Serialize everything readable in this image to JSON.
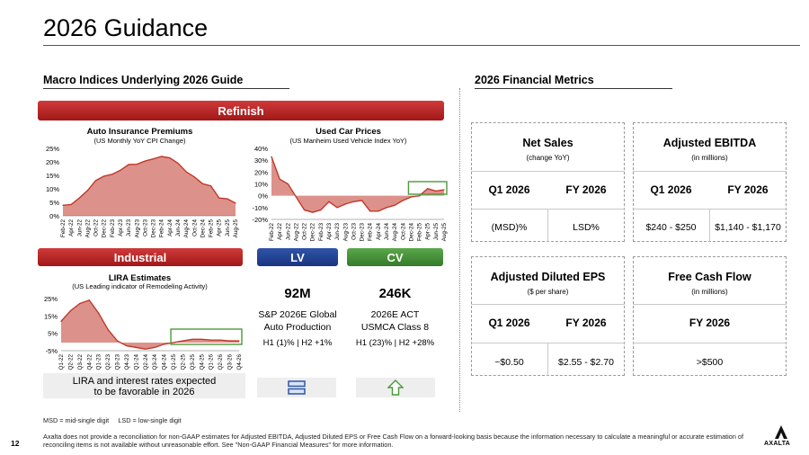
{
  "page": {
    "title": "2026 Guidance",
    "page_number": "12",
    "logo": "AXALTA"
  },
  "left": {
    "heading": "Macro Indices Underlying 2026 Guide",
    "refinish_banner": "Refinish",
    "industrial_banner": "Industrial",
    "lv_banner": "LV",
    "cv_banner": "CV",
    "lv": {
      "value": "92M",
      "line1": "S&P 2026E Global",
      "line2": "Auto Production",
      "line3": "H1 (1)% | H2 +1%"
    },
    "cv": {
      "value": "246K",
      "line1": "2026E ACT",
      "line2": "USMCA Class 8",
      "line3": "H1 (23)% | H2 +28%"
    },
    "lira_note_line1": "LIRA and interest rates expected",
    "lira_note_line2": "to be favorable in 2026",
    "lv_icon": "equal-bars-icon",
    "cv_icon": "up-arrow-icon"
  },
  "chart_data": [
    {
      "type": "area",
      "title": "Auto Insurance Premiums",
      "subtitle": "(US Monthly YoY CPI Change)",
      "x": [
        "Feb-22",
        "Apr-22",
        "Jun-22",
        "Aug-22",
        "Oct-22",
        "Dec-22",
        "Feb-23",
        "Apr-23",
        "Jun-23",
        "Aug-23",
        "Oct-23",
        "Dec-23",
        "Feb-24",
        "Apr-24",
        "Jun-24",
        "Aug-24",
        "Oct-24",
        "Dec-24",
        "Feb-25",
        "Apr-25",
        "Jun-25",
        "Aug-25"
      ],
      "values": [
        3.9,
        4.2,
        6.6,
        9.4,
        13.1,
        14.7,
        15.4,
        16.9,
        19.0,
        19.1,
        20.3,
        21.1,
        22.0,
        21.5,
        19.5,
        16.3,
        14.4,
        11.9,
        11.1,
        6.6,
        6.3,
        4.7
      ],
      "yticks": [
        "25%",
        "20%",
        "15%",
        "10%",
        "5%",
        "0%"
      ],
      "ylim": [
        0,
        25
      ],
      "color": "#c0392b"
    },
    {
      "type": "area",
      "title": "Used Car Prices",
      "subtitle": "(US Manheim Used Vehicle Index YoY)",
      "x": [
        "Feb-22",
        "Apr-22",
        "Jun-22",
        "Aug-22",
        "Oct-22",
        "Dec-22",
        "Feb-23",
        "Apr-23",
        "Jun-23",
        "Aug-23",
        "Oct-23",
        "Dec-23",
        "Feb-24",
        "Apr-24",
        "Jun-24",
        "Aug-24",
        "Oct-24",
        "Dec-24",
        "Feb-25",
        "Apr-25",
        "Jun-25",
        "Aug-25"
      ],
      "values": [
        33,
        14,
        10,
        -1,
        -12,
        -14,
        -12,
        -5,
        -10,
        -7,
        -5,
        -4,
        -13,
        -13,
        -10,
        -8,
        -4,
        -1,
        0,
        6,
        4,
        5
      ],
      "yticks": [
        "40%",
        "30%",
        "20%",
        "10%",
        "0%",
        "-10%",
        "-20%"
      ],
      "ylim": [
        -20,
        40
      ],
      "color": "#c0392b"
    },
    {
      "type": "area",
      "title": "LIRA Estimates",
      "subtitle": "(US Leading indicator of Remodeling Activity)",
      "x": [
        "Q1-22",
        "Q2-22",
        "Q3-22",
        "Q4-22",
        "Q1-23",
        "Q2-23",
        "Q3-23",
        "Q4-23",
        "Q1-24",
        "Q2-24",
        "Q3-24",
        "Q4-24",
        "Q1-25",
        "Q2-25",
        "Q3-25",
        "Q4-25",
        "Q1-26",
        "Q2-26",
        "Q3-26",
        "Q4-26"
      ],
      "values": [
        13.0,
        19.5,
        24.0,
        26.0,
        18.0,
        8.0,
        1.0,
        -2.0,
        -3.0,
        -4.0,
        -3.0,
        -1.0,
        0.0,
        1.0,
        2.0,
        2.0,
        1.5,
        1.5,
        1.0,
        1.0
      ],
      "yticks": [
        "25%",
        "15%",
        "5%",
        "-5%"
      ],
      "ylim": [
        -5,
        27
      ],
      "color": "#c0392b"
    }
  ],
  "right": {
    "heading": "2026 Financial Metrics",
    "net_sales": {
      "title": "Net Sales",
      "subtitle": "(change YoY)",
      "col1_head": "Q1 2026",
      "col2_head": "FY 2026",
      "col1_val": "(MSD)%",
      "col2_val": "LSD%"
    },
    "ebitda": {
      "title": "Adjusted EBITDA",
      "subtitle": "(in millions)",
      "col1_head": "Q1 2026",
      "col2_head": "FY 2026",
      "col1_val": "$240 - $250",
      "col2_val": "$1,140 - $1,170"
    },
    "eps": {
      "title": "Adjusted Diluted EPS",
      "subtitle": "($ per share)",
      "col1_head": "Q1 2026",
      "col2_head": "FY 2026",
      "col1_val": "~$0.50",
      "col2_val": "$2.55 - $2.70"
    },
    "fcf": {
      "title": "Free Cash Flow",
      "subtitle": "(in millions)",
      "col_head": "FY 2026",
      "col_val": ">$500"
    }
  },
  "footer": {
    "abbrev": "MSD = mid-single digit     LSD = low-single digit",
    "disclaimer1": "Axalta does not provide a reconciliation for non-GAAP estimates for Adjusted EBITDA, Adjusted Diluted EPS or Free Cash Flow on a forward-looking basis because the information necessary to calculate a meaningful or accurate estimation of",
    "disclaimer2": "reconciling items is not available without unreasonable effort. See \"Non-GAAP Financial Measures\" for more information."
  }
}
